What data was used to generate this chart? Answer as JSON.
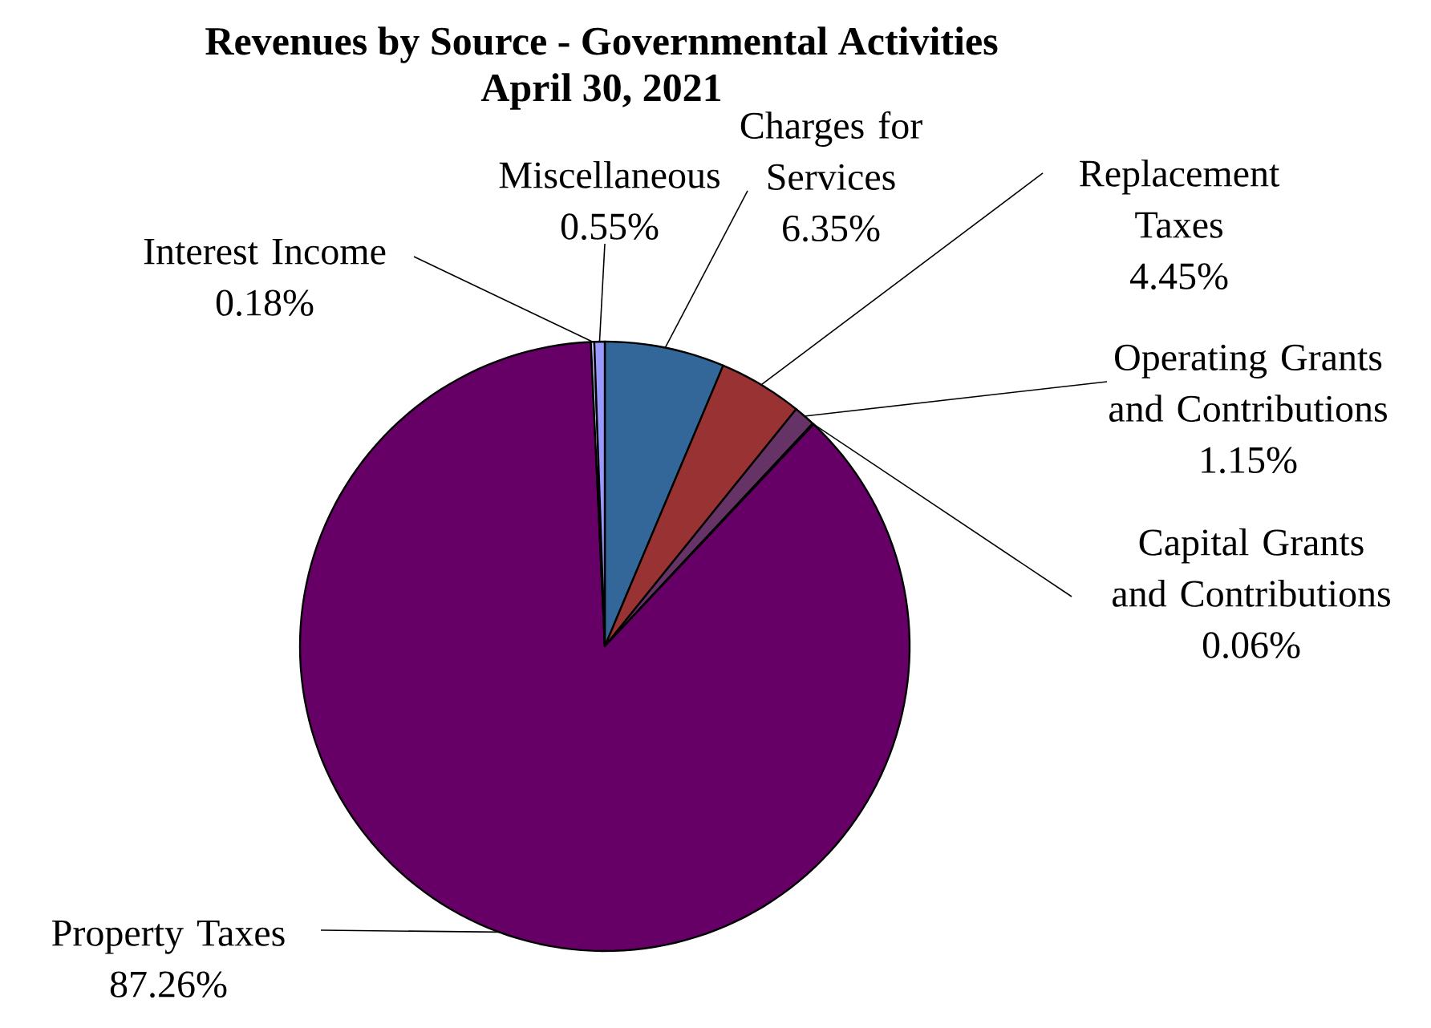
{
  "chart_data": {
    "type": "pie",
    "title": "Revenues by Source - Governmental Activities",
    "subtitle": "April 30, 2021",
    "categories": [
      "Charges for Services",
      "Replacement Taxes",
      "Operating Grants and Contributions",
      "Capital Grants and Contributions",
      "Property Taxes",
      "Interest Income",
      "Miscellaneous"
    ],
    "values": [
      6.35,
      4.45,
      1.15,
      0.06,
      87.26,
      0.18,
      0.55
    ],
    "value_labels": [
      "6.35%",
      "4.45%",
      "1.15%",
      "0.06%",
      "87.26%",
      "0.18%",
      "0.55%"
    ],
    "colors": [
      "#336699",
      "#993333",
      "#663366",
      "#9999ff",
      "#660066",
      "#ccccff",
      "#9999ff"
    ]
  }
}
